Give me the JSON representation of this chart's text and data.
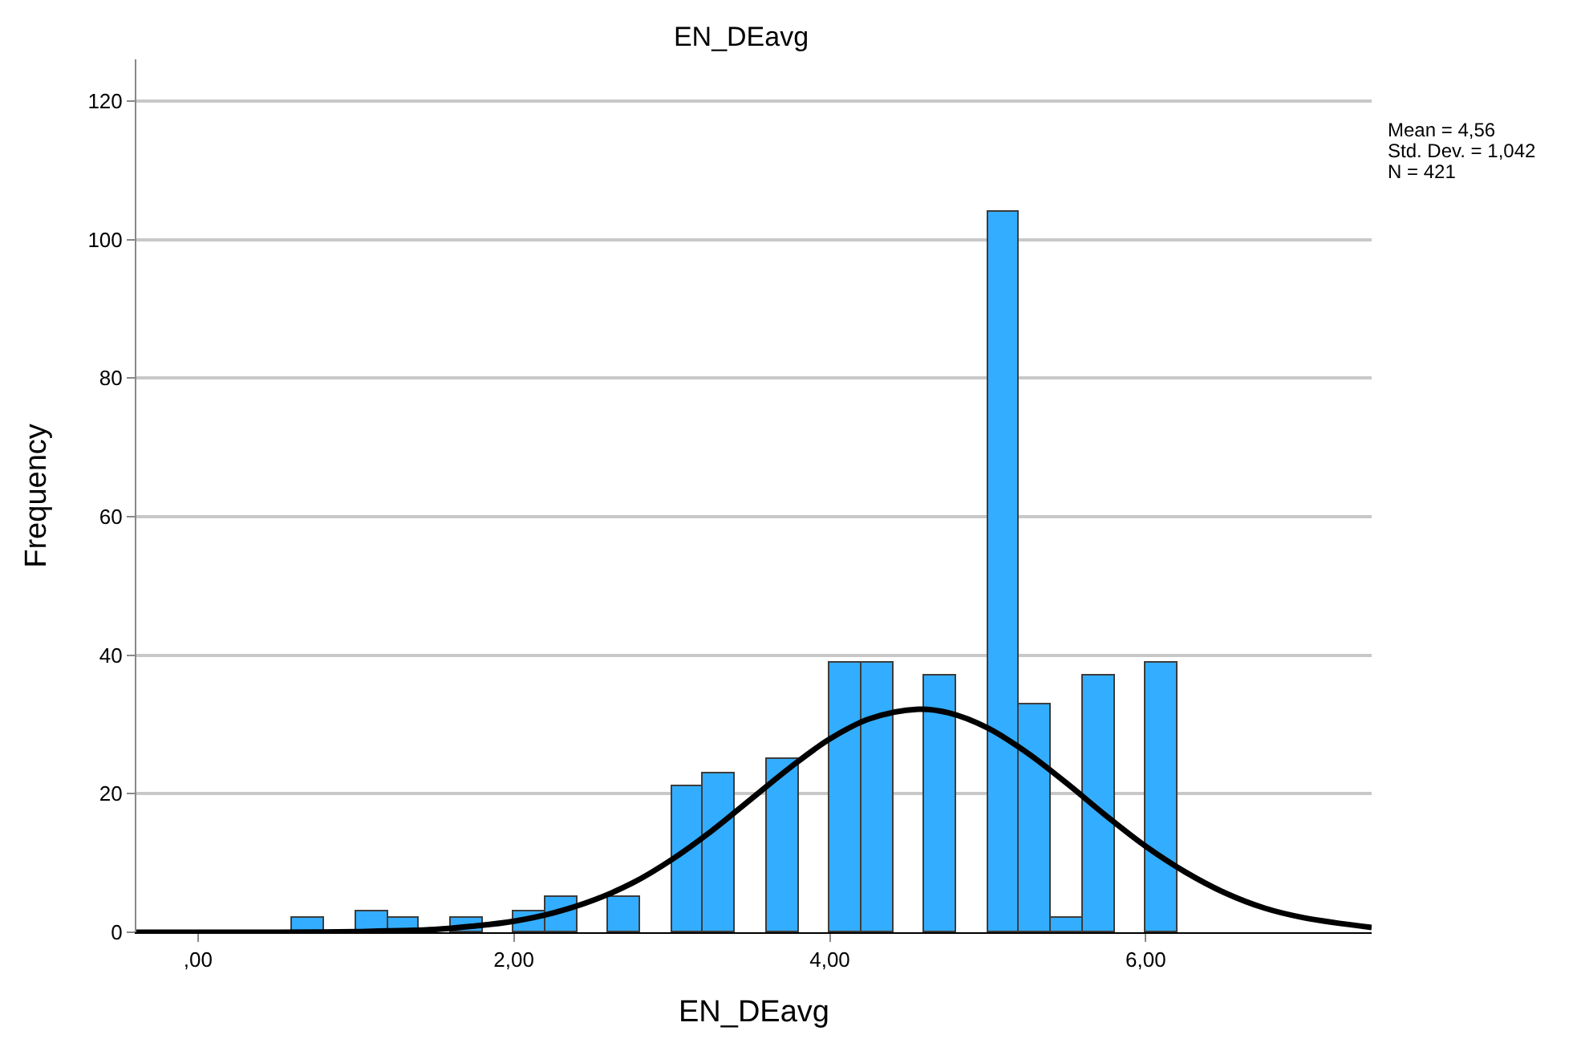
{
  "chart_data": {
    "type": "histogram",
    "title": "EN_DEavg",
    "xlabel": "EN_DEavg",
    "ylabel": "Frequency",
    "annotations": [
      "Mean = 4,56",
      "Std. Dev. = 1,042",
      "N = 421"
    ],
    "series": [
      {
        "color": "#33adff",
        "bins": [
          0.6,
          0.8,
          1.0,
          1.2,
          1.4,
          1.6,
          1.8,
          2.0,
          2.2,
          2.4,
          2.6,
          2.8,
          3.0,
          3.2,
          3.4,
          3.6,
          3.8,
          4.0,
          4.2,
          4.4,
          4.6,
          4.8,
          5.0,
          5.2,
          5.4,
          5.6,
          5.8,
          6.0,
          6.2
        ],
        "values": [
          2,
          0,
          3,
          2,
          0,
          2,
          0,
          3,
          5,
          0,
          5,
          0,
          21,
          23,
          0,
          25,
          0,
          39,
          39,
          0,
          37,
          0,
          104,
          33,
          2,
          37,
          0,
          39
        ]
      },
      {
        "type": "line",
        "color": "#000000",
        "x": [
          -0.39,
          0,
          0.5,
          1.0,
          1.5,
          1.75,
          2.0,
          2.25,
          2.5,
          2.75,
          3.0,
          3.25,
          3.5,
          3.75,
          4.0,
          4.25,
          4.56,
          4.75,
          5.0,
          5.25,
          5.5,
          5.75,
          6.0,
          6.25,
          6.5,
          6.75,
          7.0,
          7.43
        ],
        "values": [
          0,
          0,
          0,
          0.1,
          0.4,
          0.9,
          1.6,
          2.8,
          4.6,
          7.1,
          10.5,
          14.6,
          19.2,
          23.8,
          27.9,
          30.8,
          32.2,
          31.7,
          29.5,
          25.9,
          21.5,
          16.8,
          12.4,
          8.7,
          5.7,
          3.5,
          2.1,
          0.7
        ]
      }
    ],
    "xlim": [
      -0.39,
      7.43
    ],
    "xticks": [
      {
        "value": 0,
        "label": ",00"
      },
      {
        "value": 2,
        "label": "2,00"
      },
      {
        "value": 4,
        "label": "4,00"
      },
      {
        "value": 6,
        "label": "6,00"
      }
    ],
    "ylim": [
      0,
      126
    ],
    "yticks": [
      0,
      20,
      40,
      60,
      80,
      100,
      120
    ],
    "grid": "y"
  }
}
